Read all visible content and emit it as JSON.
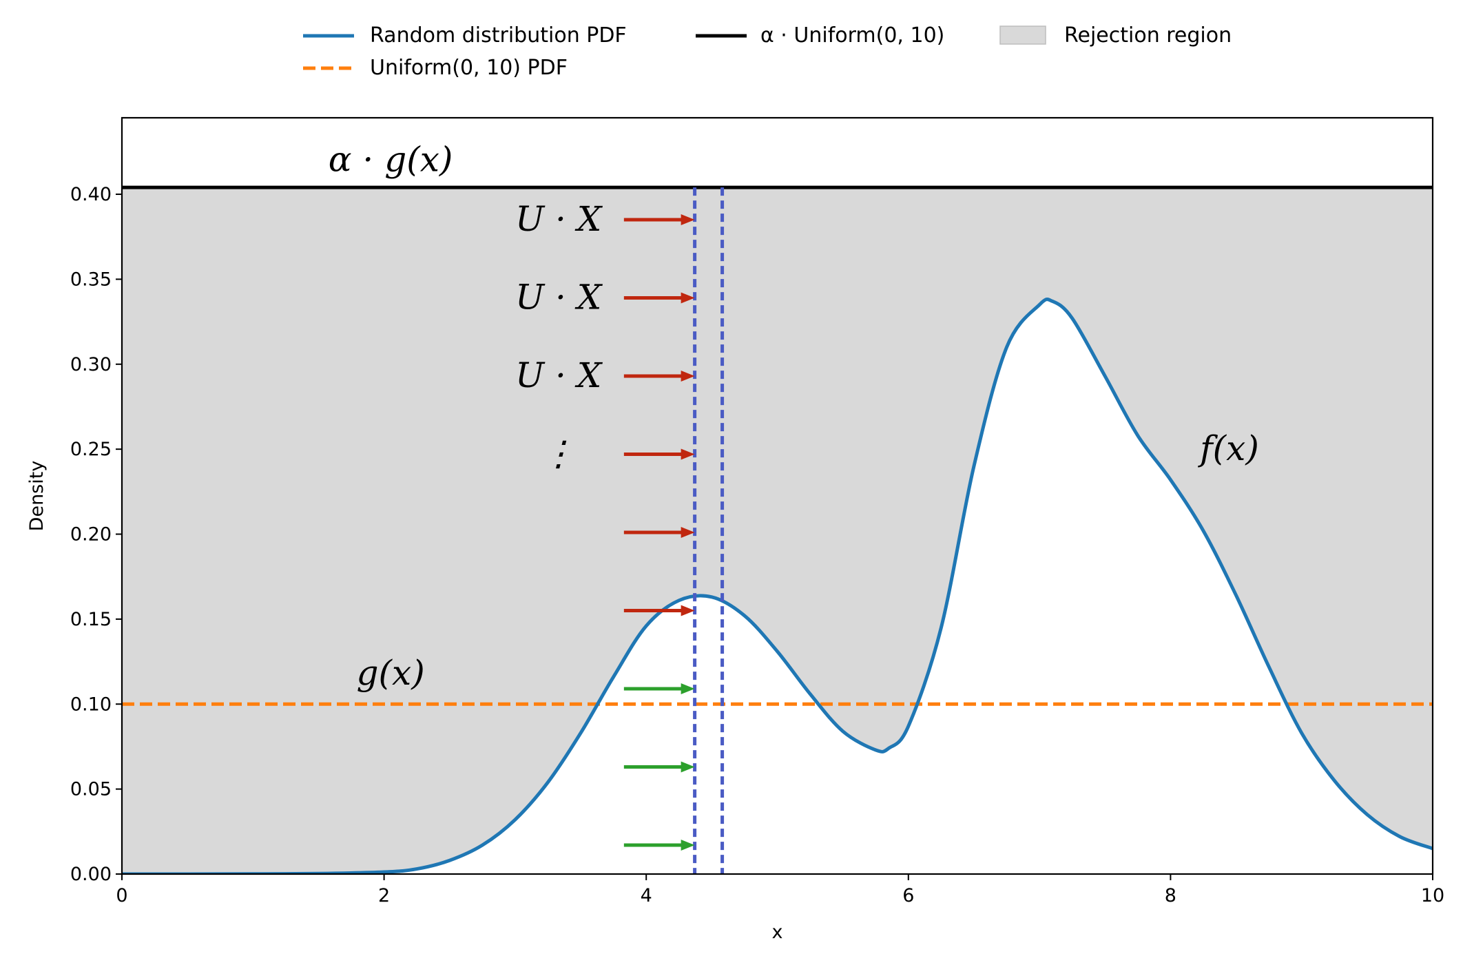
{
  "chart_data": {
    "type": "line",
    "xlabel": "x",
    "ylabel": "Density",
    "xlim": [
      0,
      10
    ],
    "ylim": [
      0,
      0.445
    ],
    "x_ticks": [
      0,
      2,
      4,
      6,
      8,
      10
    ],
    "y_ticks": [
      0.0,
      0.05,
      0.1,
      0.15,
      0.2,
      0.25,
      0.3,
      0.35,
      0.4
    ],
    "x_tick_labels": [
      "0",
      "2",
      "4",
      "6",
      "8",
      "10"
    ],
    "y_tick_labels": [
      "0.00",
      "0.05",
      "0.10",
      "0.15",
      "0.20",
      "0.25",
      "0.30",
      "0.35",
      "0.40"
    ],
    "grid": false,
    "legend_position": "top-center",
    "legend": [
      {
        "label": "Random distribution PDF",
        "style": "solid-line",
        "color": "#1f77b4"
      },
      {
        "label": "Uniform(0, 10) PDF",
        "style": "dashed-line",
        "color": "#ff7f0e"
      },
      {
        "label": "α · Uniform(0, 10)",
        "style": "solid-line",
        "color": "#000000"
      },
      {
        "label": "Rejection region",
        "style": "patch",
        "color": "#d9d9d9"
      }
    ],
    "series": [
      {
        "name": "Random distribution PDF",
        "color": "#1f77b4",
        "x": [
          0,
          0.5,
          1,
          1.5,
          2,
          2.25,
          2.5,
          2.75,
          3,
          3.25,
          3.5,
          3.75,
          4,
          4.25,
          4.5,
          4.75,
          5,
          5.25,
          5.5,
          5.75,
          5.85,
          6,
          6.25,
          6.5,
          6.75,
          7,
          7.1,
          7.25,
          7.5,
          7.75,
          8,
          8.25,
          8.5,
          8.75,
          9,
          9.25,
          9.5,
          9.75,
          10
        ],
        "y": [
          0,
          0,
          0.0001,
          0.0003,
          0.0012,
          0.003,
          0.008,
          0.017,
          0.032,
          0.054,
          0.083,
          0.116,
          0.146,
          0.161,
          0.163,
          0.152,
          0.131,
          0.106,
          0.084,
          0.073,
          0.074,
          0.087,
          0.145,
          0.24,
          0.31,
          0.335,
          0.337,
          0.327,
          0.293,
          0.258,
          0.232,
          0.202,
          0.164,
          0.122,
          0.083,
          0.055,
          0.035,
          0.022,
          0.015
        ]
      },
      {
        "name": "Uniform(0, 10) PDF",
        "color": "#ff7f0e",
        "x": [
          0,
          10
        ],
        "y": [
          0.1,
          0.1
        ]
      },
      {
        "name": "α · Uniform(0, 10)",
        "color": "#000000",
        "x": [
          0,
          10
        ],
        "y": [
          0.404,
          0.404
        ]
      }
    ],
    "rejection_region": {
      "color": "#d9d9d9",
      "between": "Random distribution PDF and α · Uniform(0, 10)"
    },
    "vertical_lines": {
      "x": [
        4.37,
        4.58
      ],
      "color": "#4a5bc4",
      "style": "dashed"
    },
    "rejected_arrows": {
      "color": "#c0270f",
      "x_start": 3.83,
      "x_end": 4.37,
      "y": [
        0.385,
        0.339,
        0.293,
        0.247,
        0.201,
        0.155
      ]
    },
    "accepted_arrows": {
      "color": "#2ca02c",
      "x_start": 3.83,
      "x_end": 4.37,
      "y": [
        0.109,
        0.063,
        0.017
      ]
    },
    "annotations": [
      {
        "text": "α · g(x)",
        "x": 2.05,
        "y": 0.42
      },
      {
        "text": "U · X",
        "x": 3.33,
        "y": 0.385
      },
      {
        "text": "U · X",
        "x": 3.33,
        "y": 0.339
      },
      {
        "text": "U · X",
        "x": 3.33,
        "y": 0.293
      },
      {
        "text": "⋮",
        "x": 3.33,
        "y": 0.247
      },
      {
        "text": "g(x)",
        "x": 2.05,
        "y": 0.118
      },
      {
        "text": "f(x)",
        "x": 8.45,
        "y": 0.25
      }
    ]
  }
}
